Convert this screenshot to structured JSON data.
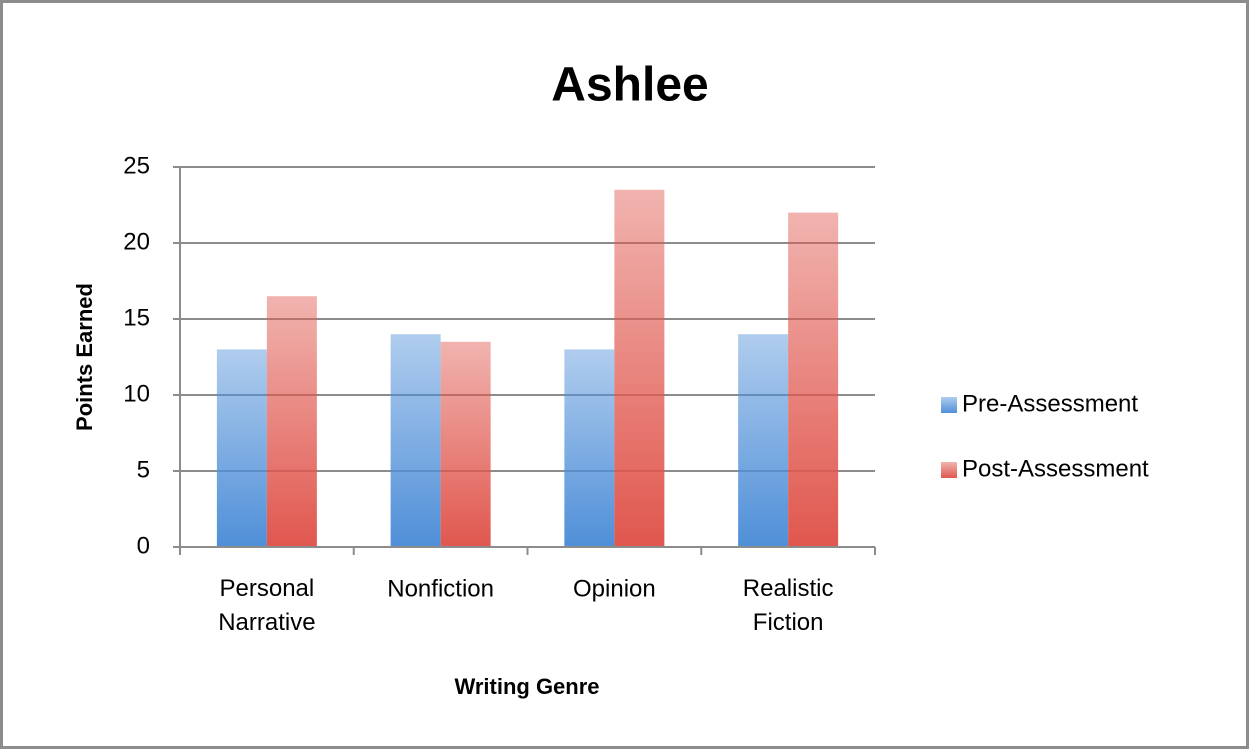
{
  "chart_data": {
    "type": "bar",
    "title": "Ashlee",
    "x_label": "Writing Genre",
    "y_label": "Points Earned",
    "categories": [
      "Personal Narrative",
      "Nonfiction",
      "Opinion",
      "Realistic Fiction"
    ],
    "series": [
      {
        "name": "Pre-Assessment",
        "color": "#4f8fd8",
        "values": [
          13,
          14,
          13,
          14
        ]
      },
      {
        "name": "Post-Assessment",
        "color": "#e0574e",
        "values": [
          16.5,
          13.5,
          23.5,
          22
        ]
      }
    ],
    "ylim": [
      0,
      25
    ],
    "yticks": [
      0,
      5,
      10,
      15,
      20,
      25
    ],
    "grid": true,
    "legend": "right"
  }
}
